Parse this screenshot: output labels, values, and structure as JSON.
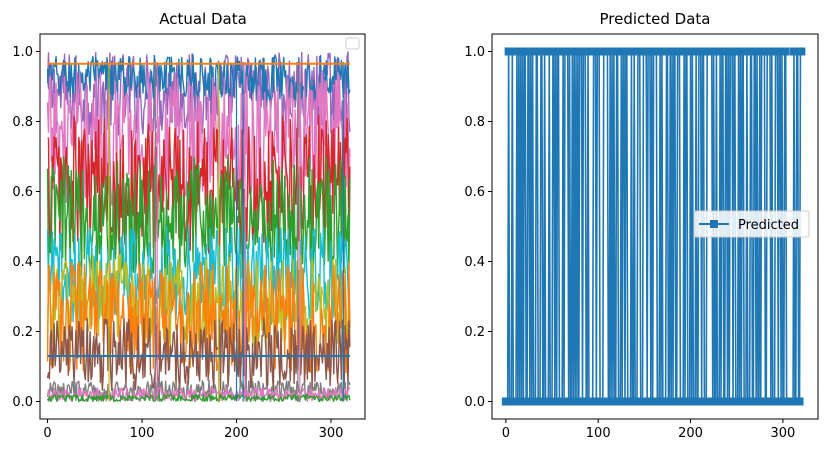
{
  "chart_data": [
    {
      "type": "line",
      "title": "Actual Data",
      "xlabel": "",
      "ylabel": "",
      "xlim": [
        -8,
        336
      ],
      "ylim": [
        -0.05,
        1.05
      ],
      "xticks": [
        0,
        100,
        200,
        300
      ],
      "yticks": [
        0.0,
        0.2,
        0.4,
        0.6,
        0.8,
        1.0
      ],
      "xtick_labels": [
        "0",
        "100",
        "200",
        "300"
      ],
      "ytick_labels": [
        "0.0",
        "0.2",
        "0.4",
        "0.6",
        "0.8",
        "1.0"
      ],
      "grid": false,
      "legend": {
        "placement": "top-right",
        "entries": []
      },
      "n_points": 321,
      "series": [
        {
          "color": "#9467bd",
          "low": 0.76,
          "high": 1.0
        },
        {
          "color": "#1f77b4",
          "low": 0.86,
          "high": 0.99
        },
        {
          "color": "#e377c2",
          "low": 0.55,
          "high": 0.95
        },
        {
          "color": "#d62728",
          "low": 0.42,
          "high": 0.82
        },
        {
          "color": "#2ca02c",
          "low": 0.35,
          "high": 0.7
        },
        {
          "color": "#17becf",
          "low": 0.22,
          "high": 0.5
        },
        {
          "color": "#bcbd22",
          "low": 0.15,
          "high": 0.42
        },
        {
          "color": "#ff7f0e",
          "low": 0.08,
          "high": 0.4
        },
        {
          "color": "#8c564b",
          "low": 0.03,
          "high": 0.24
        },
        {
          "color": "#7f7f7f",
          "low": 0.0,
          "high": 0.06
        },
        {
          "color": "#e377c2",
          "low": 0.0,
          "high": 0.04
        },
        {
          "color": "#2ca02c",
          "low": 0.0,
          "high": 0.02
        }
      ],
      "constant_series": [
        {
          "color": "#ff7f0e",
          "value": 0.965
        },
        {
          "color": "#1f77b4",
          "value": 0.13
        }
      ]
    },
    {
      "type": "line",
      "title": "Predicted Data",
      "xlabel": "",
      "ylabel": "",
      "xlim": [
        -15,
        338
      ],
      "ylim": [
        -0.05,
        1.05
      ],
      "xticks": [
        0,
        100,
        200,
        300
      ],
      "yticks": [
        0.0,
        0.2,
        0.4,
        0.6,
        0.8,
        1.0
      ],
      "xtick_labels": [
        "0",
        "100",
        "200",
        "300"
      ],
      "ytick_labels": [
        "0.0",
        "0.2",
        "0.4",
        "0.6",
        "0.8",
        "1.0"
      ],
      "grid": false,
      "legend": {
        "placement": "center-right",
        "entries": [
          "Predicted"
        ]
      },
      "marker": "square",
      "color": "#1f77b4",
      "n_points": 321,
      "series": [
        {
          "name": "Predicted",
          "values_pattern": "alternating binary 0/1 labels over indices 0–320"
        }
      ]
    }
  ]
}
